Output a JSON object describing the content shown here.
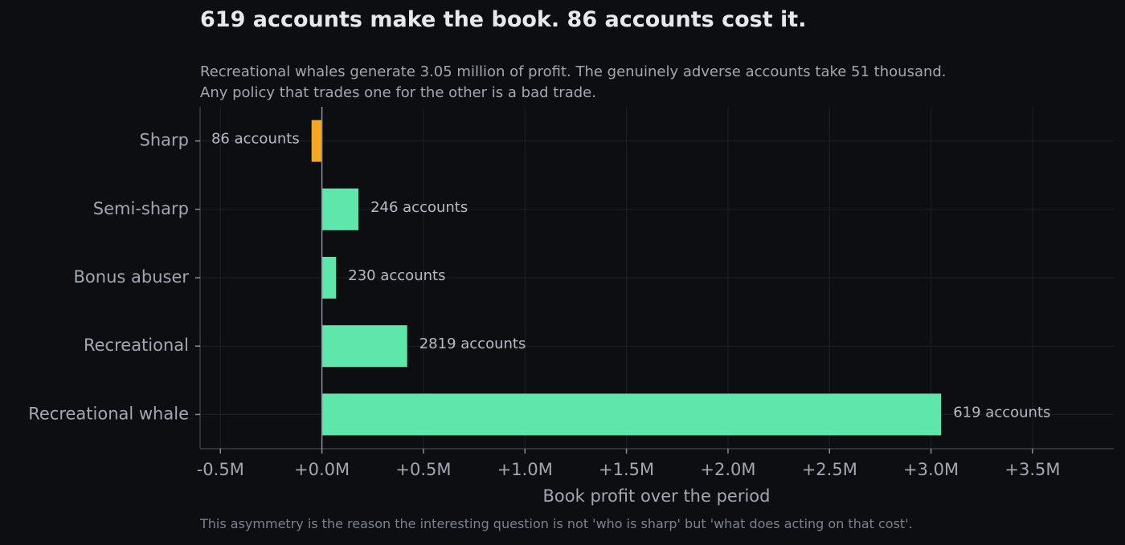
{
  "header": {
    "title": "619 accounts make the book. 86 accounts cost it.",
    "subtitle_line1": "Recreational whales generate 3.05 million of profit. The genuinely adverse accounts take 51 thousand.",
    "subtitle_line2": "Any policy that trades one for the other is a bad trade."
  },
  "footnote": "This asymmetry is the reason the interesting question is not 'who is sharp' but 'what does acting on that cost'.",
  "chart_data": {
    "type": "bar",
    "orientation": "horizontal",
    "title": "619 accounts make the book. 86 accounts cost it.",
    "xlabel": "Book profit over the period",
    "ylabel": "",
    "xlim": [
      -0.6,
      3.9
    ],
    "xunit": "M",
    "xticks": [
      -0.5,
      0.0,
      0.5,
      1.0,
      1.5,
      2.0,
      2.5,
      3.0,
      3.5
    ],
    "xtick_labels": [
      "-0.5M",
      "+0.0M",
      "+0.5M",
      "+1.0M",
      "+1.5M",
      "+2.0M",
      "+2.5M",
      "+3.0M",
      "+3.5M"
    ],
    "grid": true,
    "categories": [
      "Sharp",
      "Semi-sharp",
      "Bonus abuser",
      "Recreational",
      "Recreational whale"
    ],
    "values": [
      -0.051,
      0.18,
      0.07,
      0.42,
      3.05
    ],
    "bar_labels": [
      "86 accounts",
      "246 accounts",
      "230 accounts",
      "2819 accounts",
      "619 accounts"
    ],
    "colors": {
      "negative": "#f5a623",
      "positive": "#5ee6ab",
      "background": "#0d0e12",
      "grid": "#1e2028",
      "zero_line": "#8b909a"
    }
  }
}
